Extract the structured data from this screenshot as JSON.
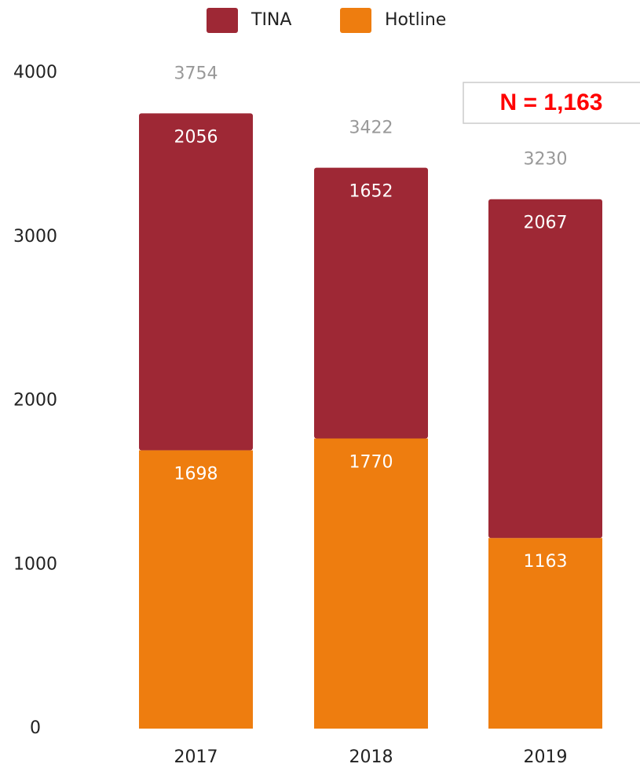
{
  "chart_data": {
    "type": "stacked_bar",
    "categories": [
      "2017",
      "2018",
      "2019"
    ],
    "series": [
      {
        "name": "Hotline",
        "color": "#ee7d0f",
        "values": [
          1698,
          1770,
          1163
        ]
      },
      {
        "name": "TINA",
        "color": "#9e2835",
        "values": [
          2056,
          1652,
          2067
        ]
      }
    ],
    "totals": [
      3754,
      3422,
      3230
    ],
    "ylim": [
      0,
      4000
    ],
    "yticks": [
      0,
      1000,
      2000,
      3000,
      4000
    ],
    "annotation": "N = 1,163",
    "legend": "top"
  }
}
